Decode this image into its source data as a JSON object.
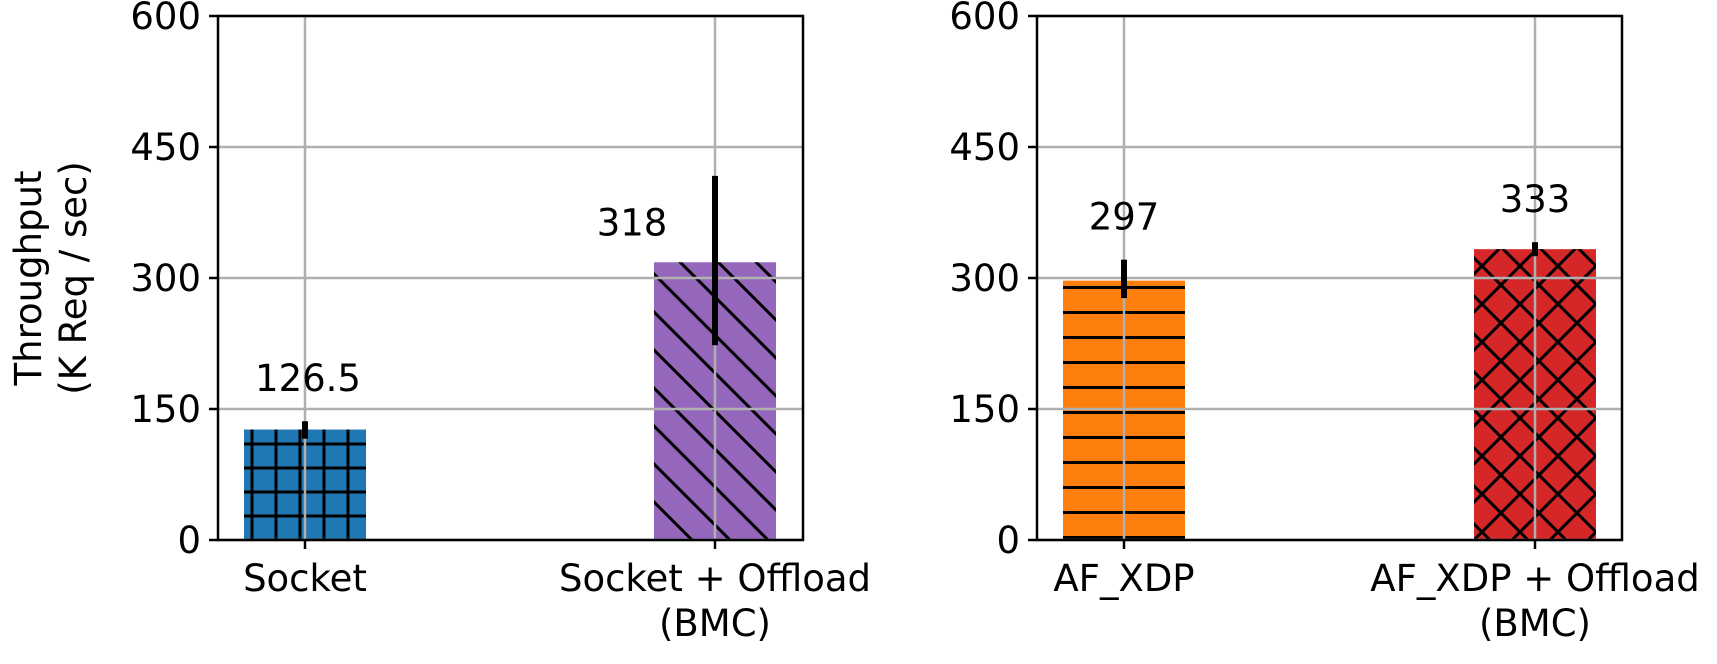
{
  "chart_data": [
    {
      "type": "bar",
      "ylabel": "Throughput\n(K Req / sec)",
      "ylim": [
        0,
        600
      ],
      "yticks": [
        0,
        150,
        300,
        450,
        600
      ],
      "grid": true,
      "categories": [
        "Socket",
        "Socket + Offload\n(BMC)"
      ],
      "values": [
        126.5,
        318
      ],
      "error": [
        {
          "low": 116,
          "high": 136
        },
        {
          "low": 223,
          "high": 417
        }
      ],
      "data_labels": [
        "126.5",
        "318"
      ],
      "colors": [
        "#1f77b4",
        "#9467bd"
      ],
      "hatches": [
        "grid",
        "diagonal"
      ]
    },
    {
      "type": "bar",
      "ylim": [
        0,
        600
      ],
      "yticks": [
        0,
        150,
        300,
        450,
        600
      ],
      "grid": true,
      "categories": [
        "AF_XDP",
        "AF_XDP + Offload\n(BMC)"
      ],
      "values": [
        297,
        333
      ],
      "error": [
        {
          "low": 277,
          "high": 321
        },
        {
          "low": 325,
          "high": 341
        }
      ],
      "data_labels": [
        "297",
        "333"
      ],
      "colors": [
        "#ff7f0e",
        "#d62728"
      ],
      "hatches": [
        "horizontal",
        "crosshatch"
      ]
    }
  ]
}
